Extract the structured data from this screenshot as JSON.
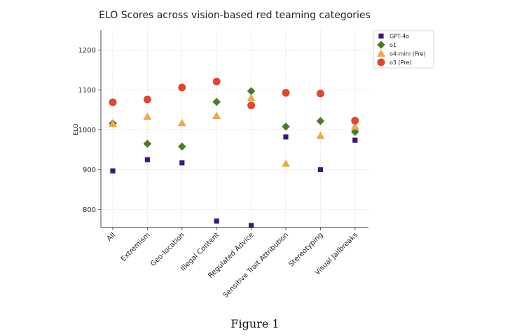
{
  "figure_caption": "Figure 1",
  "chart_data": {
    "type": "scatter",
    "title": "ELO Scores across vision-based red teaming categories",
    "xlabel": "",
    "ylabel": "ELO",
    "categories": [
      "All",
      "Extremism",
      "Geo-location",
      "Illegal Content",
      "Regulated Advice",
      "Sensitive Trait Attribution",
      "Stereotyping",
      "Visual Jailbreaks"
    ],
    "ylim": [
      755,
      1250
    ],
    "yticks": [
      800,
      900,
      1000,
      1100,
      1200
    ],
    "grid": true,
    "legend_position": "top-right",
    "series": [
      {
        "name": "GPT-4o",
        "marker": "square",
        "color": "#3b1878",
        "values": [
          897,
          925,
          917,
          771,
          760,
          982,
          900,
          974
        ]
      },
      {
        "name": "o1",
        "marker": "diamond",
        "color": "#4a7a2a",
        "values": [
          1016,
          965,
          958,
          1070,
          1097,
          1008,
          1022,
          995
        ]
      },
      {
        "name": "o4-mini (Pre)",
        "marker": "triangle",
        "color": "#e8aa50",
        "values": [
          1015,
          1033,
          1017,
          1035,
          1080,
          915,
          985,
          1008
        ]
      },
      {
        "name": "o3 (Pre)",
        "marker": "circle",
        "color": "#d94838",
        "values": [
          1069,
          1076,
          1106,
          1121,
          1061,
          1093,
          1091,
          1023
        ]
      }
    ]
  }
}
